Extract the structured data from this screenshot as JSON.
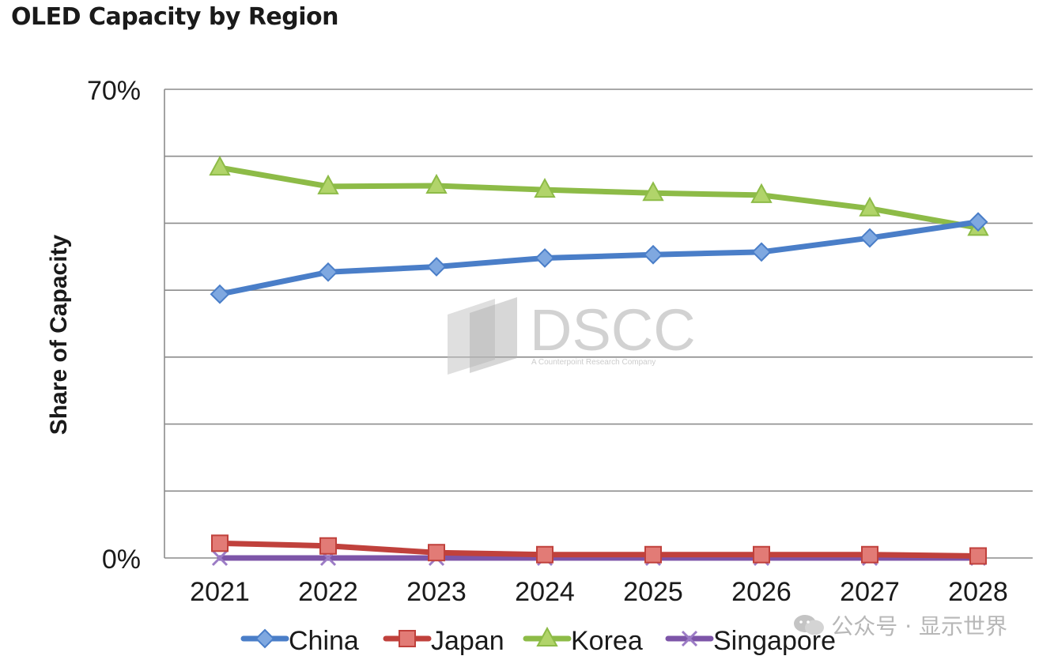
{
  "page": {
    "title": "OLED Capacity by Region"
  },
  "watermarks": {
    "brand": "DSCC",
    "brand_tagline": "A Counterpoint Research Company",
    "account": "公众号 · 显示世界",
    "account_icon": "wechat-icon"
  },
  "colors": {
    "china": "#4a7ec8",
    "japan": "#c0413c",
    "korea": "#8dbb47",
    "singapore": "#7d55a8",
    "grid": "#8c8c8c",
    "watermark": "#c4c4c4"
  },
  "chart_data": {
    "type": "line",
    "title": "",
    "xlabel": "",
    "ylabel": "Share of Capacity",
    "x": [
      "2021",
      "2022",
      "2023",
      "2024",
      "2025",
      "2026",
      "2027",
      "2028"
    ],
    "ylim": [
      0,
      70
    ],
    "y_tick_labels": [
      {
        "value": 70,
        "label": "70%"
      },
      {
        "value": 0,
        "label": "0%"
      }
    ],
    "gridlines": [
      0,
      10,
      20,
      30,
      40,
      50,
      60,
      70
    ],
    "grid": true,
    "legend_position": "bottom",
    "series": [
      {
        "name": "China",
        "marker": "diamond",
        "color": "#4a7ec8",
        "values": [
          39.4,
          42.7,
          43.5,
          44.8,
          45.3,
          45.7,
          47.8,
          50.2
        ]
      },
      {
        "name": "Japan",
        "marker": "square",
        "color": "#c0413c",
        "values": [
          2.2,
          1.8,
          0.8,
          0.5,
          0.5,
          0.5,
          0.5,
          0.3
        ]
      },
      {
        "name": "Korea",
        "marker": "triangle",
        "color": "#8dbb47",
        "values": [
          58.3,
          55.5,
          55.6,
          55.0,
          54.5,
          54.2,
          52.2,
          49.3
        ]
      },
      {
        "name": "Singapore",
        "marker": "x",
        "color": "#7d55a8",
        "values": [
          0,
          0,
          0,
          0,
          0,
          0,
          0,
          0
        ]
      }
    ]
  }
}
